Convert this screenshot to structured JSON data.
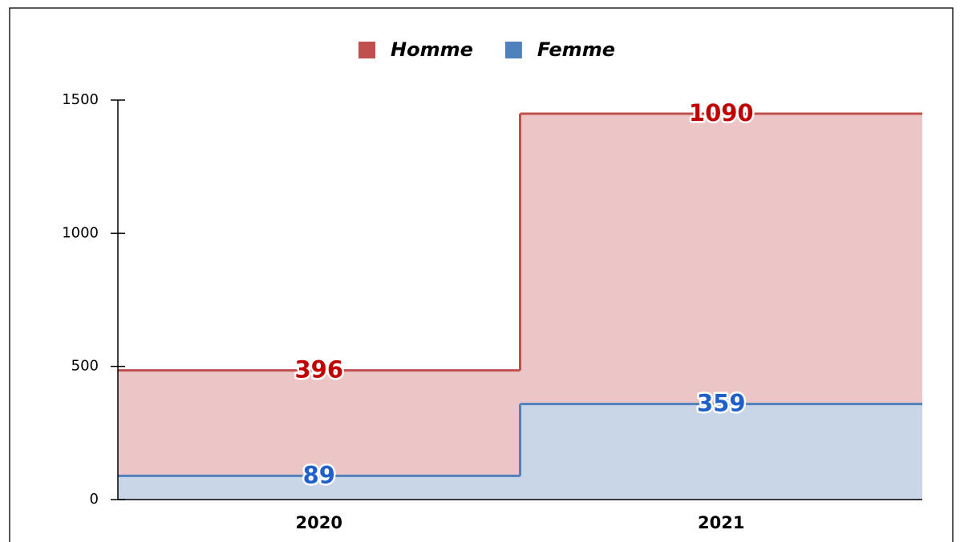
{
  "chart_data": {
    "type": "area",
    "step": true,
    "stacked": true,
    "categories": [
      "2020",
      "2021"
    ],
    "series": [
      {
        "name": "Homme",
        "color": "#c0504d",
        "fill": "#ecc6c6",
        "label_color": "#c00000",
        "values": [
          396,
          1090
        ]
      },
      {
        "name": "Femme",
        "color": "#4f81bd",
        "fill": "#c9d6e8",
        "label_color": "#1f5fc8",
        "values": [
          89,
          359
        ]
      }
    ],
    "ylim": [
      0,
      1500
    ],
    "yticks": [
      0,
      500,
      1000,
      1500
    ],
    "legend": "top"
  }
}
